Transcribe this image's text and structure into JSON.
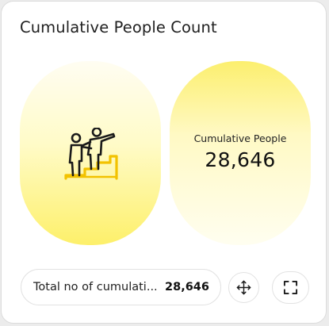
{
  "widget": {
    "title": "Cumulative People Count"
  },
  "illustration": {
    "icon": "people-climbing-stairs-icon",
    "accent_color": "#f2c200",
    "outline_color": "#1a1a1a"
  },
  "metric": {
    "label": "Cumulative People",
    "value": "28,646"
  },
  "summary": {
    "label": "Total no of cumulati...",
    "value": "28,646"
  },
  "actions": {
    "move_icon": "move-arrows-icon",
    "expand_icon": "fullscreen-icon"
  },
  "colors": {
    "panel_yellow": "#fdf06a",
    "card_background": "#ffffff"
  }
}
